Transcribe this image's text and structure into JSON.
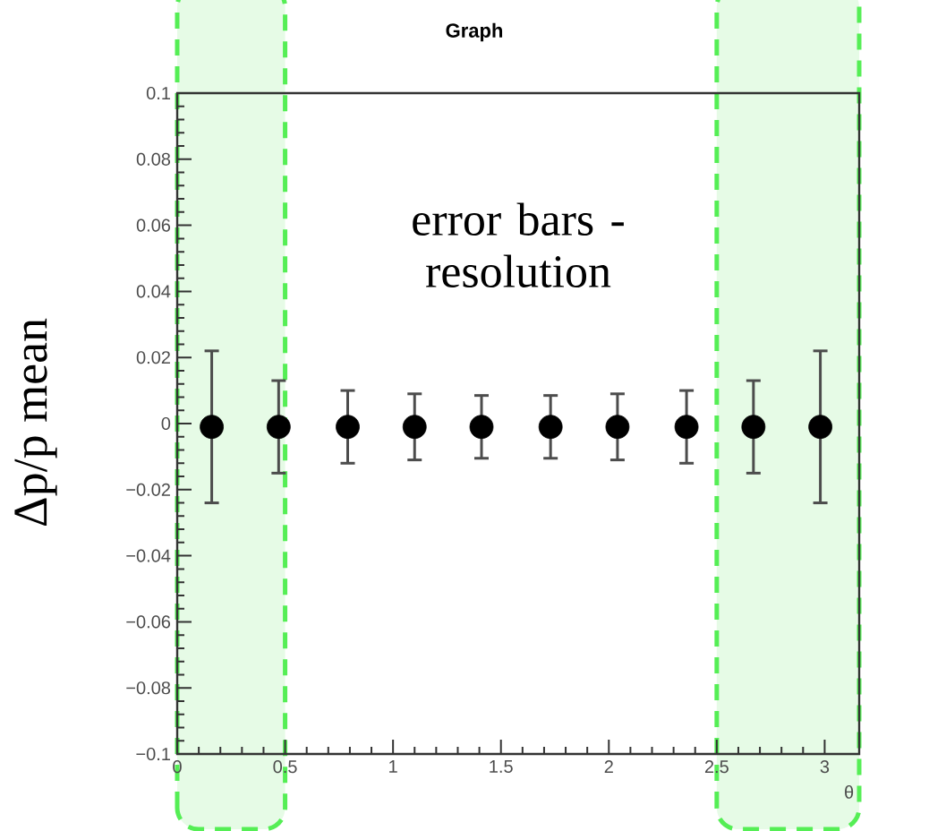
{
  "chart_data": {
    "type": "scatter",
    "title": "Graph",
    "xlabel": "θ",
    "ylabel": "Δp/p mean",
    "annotations": [
      "error bars - resolution"
    ],
    "x": [
      0.16,
      0.47,
      0.79,
      1.1,
      1.41,
      1.73,
      2.04,
      2.36,
      2.67,
      2.98
    ],
    "series": [
      {
        "color": "#000000",
        "values": [
          -0.001,
          -0.001,
          -0.001,
          -0.001,
          -0.001,
          -0.001,
          -0.001,
          -0.001,
          -0.001,
          -0.001
        ],
        "errors": [
          0.023,
          0.014,
          0.011,
          0.01,
          0.0095,
          0.0095,
          0.01,
          0.011,
          0.014,
          0.023
        ]
      }
    ],
    "xlim": [
      0,
      3.16
    ],
    "ylim": [
      -0.1,
      0.1
    ],
    "xticks": [
      0,
      0.5,
      1,
      1.5,
      2,
      2.5,
      3
    ],
    "yticks": [
      {
        "value": -0.1,
        "label": "−0.1"
      },
      {
        "value": -0.08,
        "label": "−0.08"
      },
      {
        "value": -0.06,
        "label": "−0.06"
      },
      {
        "value": -0.04,
        "label": "−0.04"
      },
      {
        "value": -0.02,
        "label": "−0.02"
      },
      0,
      0.02,
      0.04,
      0.06,
      0.08,
      0.1
    ],
    "bands": [
      {
        "axis": "x",
        "from": 0,
        "to": 0.5,
        "color": "#e6fbe6"
      },
      {
        "axis": "x",
        "from": 2.5,
        "to": 3.16,
        "color": "#e6fbe6"
      }
    ],
    "marker": "circle"
  }
}
